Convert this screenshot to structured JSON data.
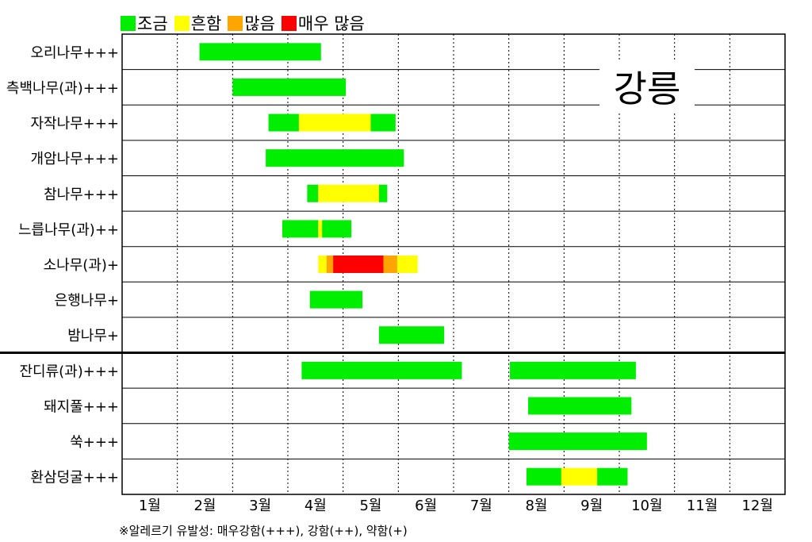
{
  "chart_data": {
    "type": "gantt",
    "title": "강릉",
    "footnote": "※알레르기 유발성: 매우강함(+++), 강함(++), 약함(+)",
    "months": [
      "1월",
      "2월",
      "3월",
      "4월",
      "5월",
      "6월",
      "7월",
      "8월",
      "9월",
      "10월",
      "11월",
      "12월"
    ],
    "legend": [
      {
        "level": "low",
        "label": "조금",
        "color": "#00ee00"
      },
      {
        "level": "mid",
        "label": "흔함",
        "color": "#ffff00"
      },
      {
        "level": "high",
        "label": "많음",
        "color": "#ffa500"
      },
      {
        "level": "veryhigh",
        "label": "매우 많음",
        "color": "#ff0000"
      }
    ],
    "divider_after_row": 9,
    "rows": [
      {
        "label": "오리나무+++",
        "segments": [
          {
            "start": 2.4,
            "end": 4.6,
            "level": "low"
          }
        ]
      },
      {
        "label": "측백나무(과)+++",
        "segments": [
          {
            "start": 3.0,
            "end": 5.05,
            "level": "low"
          }
        ]
      },
      {
        "label": "자작나무+++",
        "segments": [
          {
            "start": 3.65,
            "end": 4.2,
            "level": "low"
          },
          {
            "start": 4.2,
            "end": 5.5,
            "level": "mid"
          },
          {
            "start": 5.5,
            "end": 5.95,
            "level": "low"
          }
        ]
      },
      {
        "label": "개암나무+++",
        "segments": [
          {
            "start": 3.6,
            "end": 6.1,
            "level": "low"
          }
        ]
      },
      {
        "label": "참나무+++",
        "segments": [
          {
            "start": 4.35,
            "end": 4.55,
            "level": "low"
          },
          {
            "start": 4.55,
            "end": 5.65,
            "level": "mid"
          },
          {
            "start": 5.65,
            "end": 5.8,
            "level": "low"
          }
        ]
      },
      {
        "label": "느릅나무(과)++",
        "segments": [
          {
            "start": 3.9,
            "end": 4.55,
            "level": "low"
          },
          {
            "start": 4.55,
            "end": 4.62,
            "level": "mid"
          },
          {
            "start": 4.62,
            "end": 5.15,
            "level": "low"
          }
        ]
      },
      {
        "label": "소나무(과)+",
        "segments": [
          {
            "start": 4.55,
            "end": 4.7,
            "level": "mid"
          },
          {
            "start": 4.7,
            "end": 4.82,
            "level": "high"
          },
          {
            "start": 4.82,
            "end": 5.73,
            "level": "veryhigh"
          },
          {
            "start": 5.73,
            "end": 5.98,
            "level": "high"
          },
          {
            "start": 5.98,
            "end": 6.35,
            "level": "mid"
          }
        ]
      },
      {
        "label": "은행나무+",
        "segments": [
          {
            "start": 4.4,
            "end": 5.35,
            "level": "low"
          }
        ]
      },
      {
        "label": "밤나무+",
        "segments": [
          {
            "start": 5.65,
            "end": 6.83,
            "level": "low"
          }
        ]
      },
      {
        "label": "잔디류(과)+++",
        "segments": [
          {
            "start": 4.25,
            "end": 7.15,
            "level": "low"
          },
          {
            "start": 8.02,
            "end": 10.3,
            "level": "low"
          }
        ]
      },
      {
        "label": "돼지풀+++",
        "segments": [
          {
            "start": 8.35,
            "end": 10.22,
            "level": "low"
          }
        ]
      },
      {
        "label": "쑥+++",
        "segments": [
          {
            "start": 8.0,
            "end": 10.5,
            "level": "low"
          }
        ]
      },
      {
        "label": "환삼덩굴+++",
        "segments": [
          {
            "start": 8.32,
            "end": 8.95,
            "level": "low"
          },
          {
            "start": 8.95,
            "end": 9.6,
            "level": "mid"
          },
          {
            "start": 9.6,
            "end": 10.15,
            "level": "low"
          }
        ]
      }
    ]
  }
}
